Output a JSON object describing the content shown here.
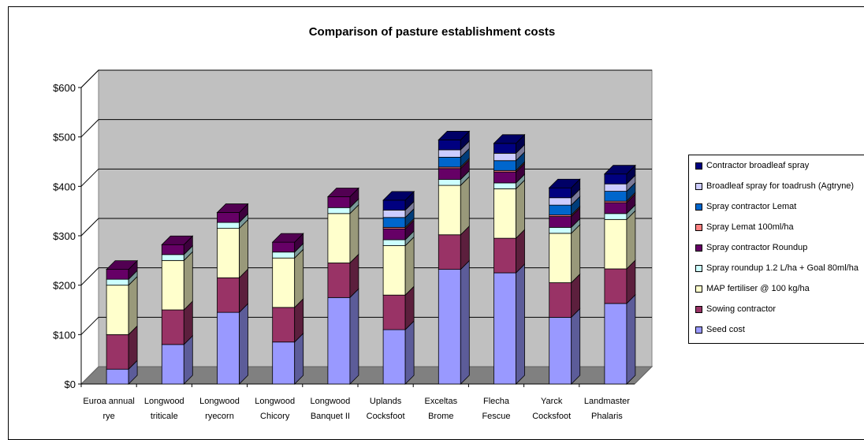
{
  "chart_data": {
    "type": "bar",
    "stacked": true,
    "three_d": true,
    "title": "Comparison of pasture establishment costs",
    "xlabel": "",
    "ylabel": "",
    "ylim": [
      0,
      600
    ],
    "y_ticks": [
      "$0",
      "$100",
      "$200",
      "$300",
      "$400",
      "$500",
      "$600"
    ],
    "grid": true,
    "legend_position": "right",
    "categories": [
      [
        "Euroa annual",
        "rye"
      ],
      [
        "Longwood",
        "triticale"
      ],
      [
        "Longwood",
        "ryecorn"
      ],
      [
        "Longwood",
        "Chicory"
      ],
      [
        "Longwood",
        "Banquet II"
      ],
      [
        "Uplands",
        "Cocksfoot"
      ],
      [
        "Exceltas",
        "Brome"
      ],
      [
        "Flecha",
        "Fescue"
      ],
      [
        "Yarck",
        "Cocksfoot"
      ],
      [
        "Landmaster",
        "Phalaris"
      ]
    ],
    "series": [
      {
        "name": "Seed cost",
        "color": "#9999ff",
        "values": [
          30,
          80,
          145,
          85,
          175,
          110,
          232,
          225,
          135,
          163
        ]
      },
      {
        "name": "Sowing contractor",
        "color": "#993366",
        "values": [
          70,
          70,
          70,
          70,
          70,
          70,
          70,
          70,
          70,
          70
        ]
      },
      {
        "name": "MAP fertiliser @ 100 kg/ha",
        "color": "#ffffcc",
        "values": [
          100,
          100,
          100,
          100,
          100,
          100,
          100,
          100,
          100,
          100
        ]
      },
      {
        "name": "Spray roundup 1.2 L/ha + Goal 80ml/ha",
        "color": "#ccffff",
        "values": [
          12,
          12,
          12,
          12,
          12,
          12,
          12,
          12,
          12,
          12
        ]
      },
      {
        "name": "Spray contractor Roundup",
        "color": "#660066",
        "values": [
          20,
          20,
          20,
          20,
          22,
          22,
          22,
          22,
          22,
          22
        ]
      },
      {
        "name": "Spray Lemat 100ml/ha",
        "color": "#ff8080",
        "values": [
          0,
          0,
          0,
          0,
          0,
          3,
          3,
          3,
          3,
          3
        ]
      },
      {
        "name": "Spray contractor Lemat",
        "color": "#0066cc",
        "values": [
          0,
          0,
          0,
          0,
          0,
          20,
          20,
          20,
          20,
          20
        ]
      },
      {
        "name": "Broadleaf spray for toadrush (Agtryne)",
        "color": "#ccccff",
        "values": [
          0,
          0,
          0,
          0,
          0,
          15,
          15,
          15,
          15,
          15
        ]
      },
      {
        "name": "Contractor broadleaf spray",
        "color": "#000080",
        "values": [
          0,
          0,
          0,
          0,
          0,
          20,
          20,
          20,
          20,
          20
        ]
      }
    ]
  },
  "legend": {
    "items": [
      {
        "label": "Contractor broadleaf spray",
        "color": "#000080"
      },
      {
        "label": "Broadleaf spray for toadrush (Agtryne)",
        "color": "#ccccff"
      },
      {
        "label": "Spray contractor Lemat",
        "color": "#0066cc"
      },
      {
        "label": "Spray Lemat 100ml/ha",
        "color": "#ff8080"
      },
      {
        "label": "Spray contractor Roundup",
        "color": "#660066"
      },
      {
        "label": "Spray roundup 1.2 L/ha + Goal 80ml/ha",
        "color": "#ccffff"
      },
      {
        "label": "MAP fertiliser @ 100 kg/ha",
        "color": "#ffffcc"
      },
      {
        "label": "Sowing contractor",
        "color": "#993366"
      },
      {
        "label": "Seed cost",
        "color": "#9999ff"
      }
    ]
  }
}
